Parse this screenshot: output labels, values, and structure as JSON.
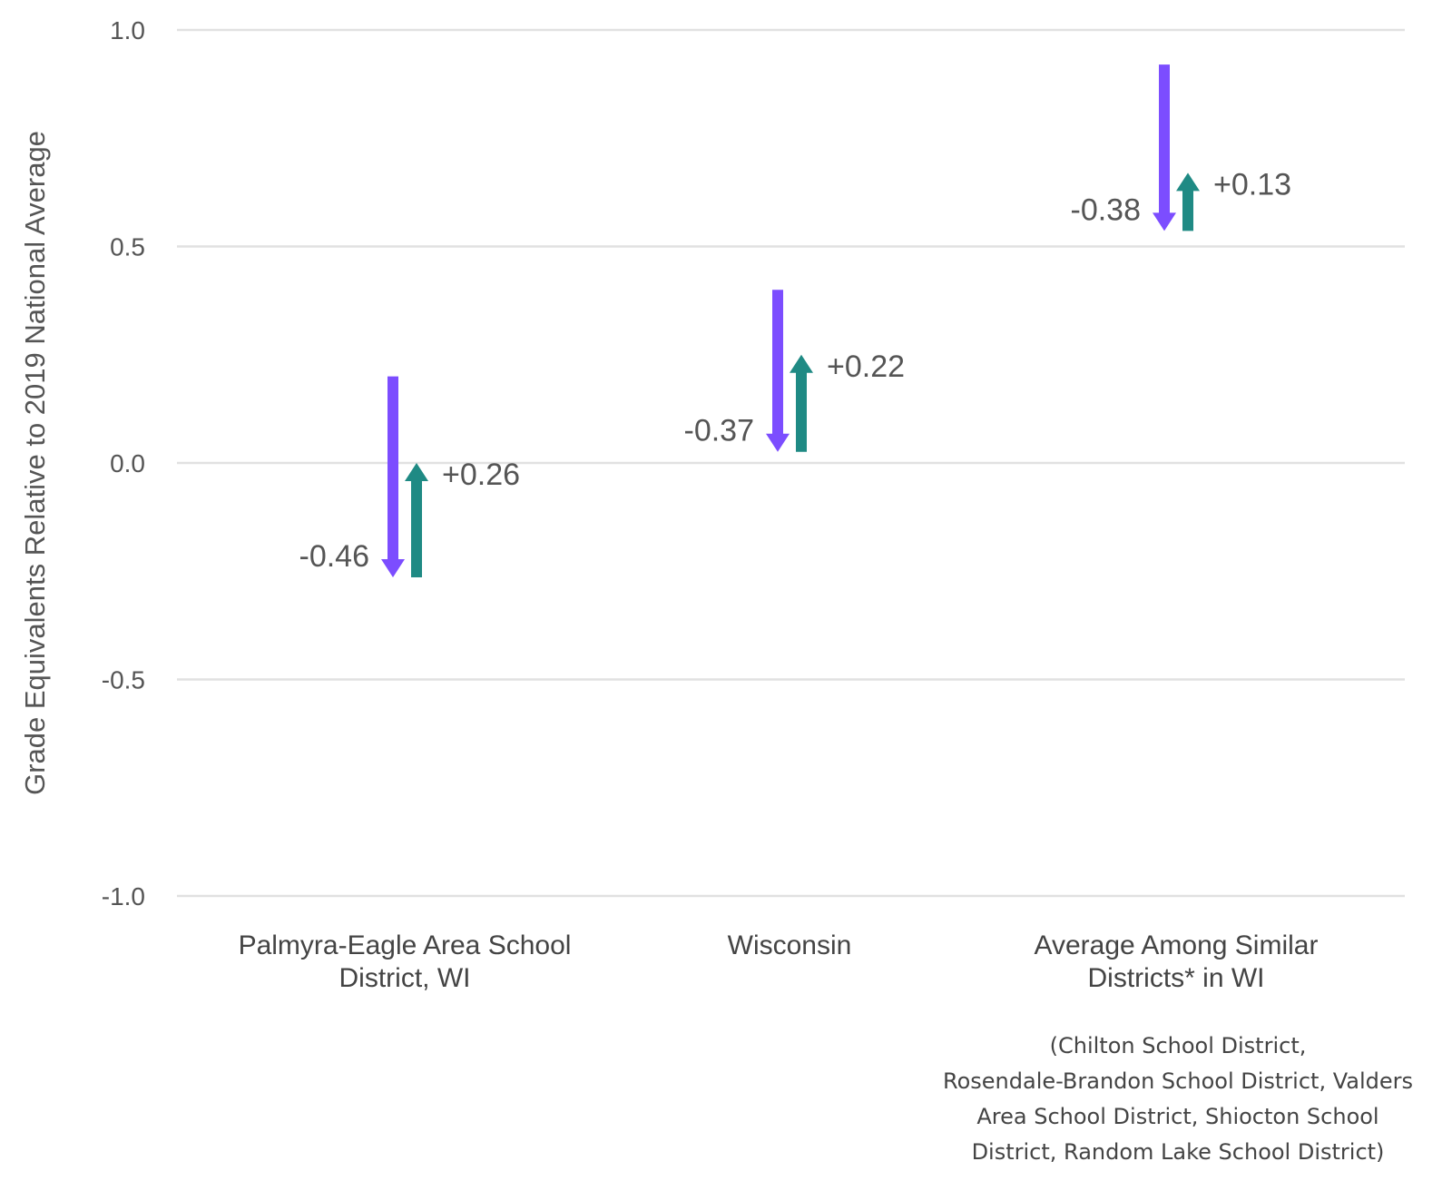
{
  "chart_data": {
    "type": "arrow",
    "ylabel": "Grade Equivalents Relative to 2019 National Average",
    "ylim": [
      -1.0,
      1.0
    ],
    "yticks": [
      1.0,
      0.5,
      0.0,
      -0.5,
      -1.0
    ],
    "ytick_labels": [
      "1.0",
      "0.5",
      "0.0",
      "-0.5",
      "-1.0"
    ],
    "grid": true,
    "colors": {
      "decline": "#7c4dff",
      "recovery": "#1f8a84"
    },
    "categories": [
      {
        "label_lines": [
          "Palmyra-Eagle Area School",
          "District, WI"
        ],
        "start": 0.2,
        "decline": -0.46,
        "recovery": 0.26,
        "decline_label": "-0.46",
        "recovery_label": "+0.26",
        "note_lines": []
      },
      {
        "label_lines": [
          "Wisconsin"
        ],
        "start": 0.4,
        "decline": -0.37,
        "recovery": 0.22,
        "decline_label": "-0.37",
        "recovery_label": "+0.22",
        "note_lines": []
      },
      {
        "label_lines": [
          "Average Among Similar",
          "Districts* in WI"
        ],
        "start": 0.92,
        "decline": -0.38,
        "recovery": 0.13,
        "decline_label": "-0.38",
        "recovery_label": "+0.13",
        "note_lines": [
          "(Chilton School District,",
          "Rosendale-Brandon School District, Valders",
          "Area School District, Shiocton School",
          "District, Random Lake School District)"
        ]
      }
    ]
  }
}
